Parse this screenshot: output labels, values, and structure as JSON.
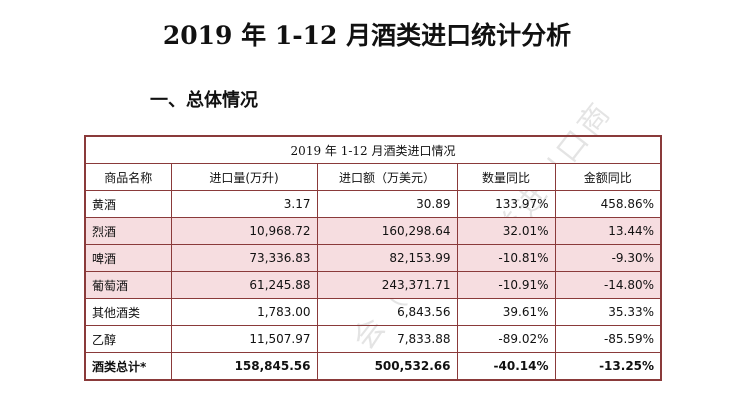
{
  "document": {
    "title": "2019 年 1-12 月酒类进口统计分析",
    "section_heading": "一、总体情况"
  },
  "table": {
    "caption": "2019 年 1-12 月酒类进口情况",
    "headers": [
      "商品名称",
      "进口量(万升)",
      "进口额（万美元）",
      "数量同比",
      "金额同比"
    ],
    "rows": [
      {
        "name": "黄酒",
        "volume": "3.17",
        "value": "30.89",
        "qty_yoy": "133.97%",
        "amt_yoy": "458.86%"
      },
      {
        "name": "烈酒",
        "volume": "10,968.72",
        "value": "160,298.64",
        "qty_yoy": "32.01%",
        "amt_yoy": "13.44%"
      },
      {
        "name": "啤酒",
        "volume": "73,336.83",
        "value": "82,153.99",
        "qty_yoy": "-10.81%",
        "amt_yoy": "-9.30%"
      },
      {
        "name": "葡萄酒",
        "volume": "61,245.88",
        "value": "243,371.71",
        "qty_yoy": "-10.91%",
        "amt_yoy": "-14.80%"
      },
      {
        "name": "其他酒类",
        "volume": "1,783.00",
        "value": "6,843.56",
        "qty_yoy": "39.61%",
        "amt_yoy": "35.33%"
      },
      {
        "name": "乙醇",
        "volume": "11,507.97",
        "value": "7,833.88",
        "qty_yoy": "-89.02%",
        "amt_yoy": "-85.59%"
      },
      {
        "name": "酒类总计*",
        "volume": "158,845.56",
        "value": "500,532.66",
        "qty_yoy": "-40.14%",
        "amt_yoy": "-13.25%"
      }
    ]
  },
  "colors": {
    "border": "#8a3a3a",
    "highlight_row": "#f6dde0"
  }
}
